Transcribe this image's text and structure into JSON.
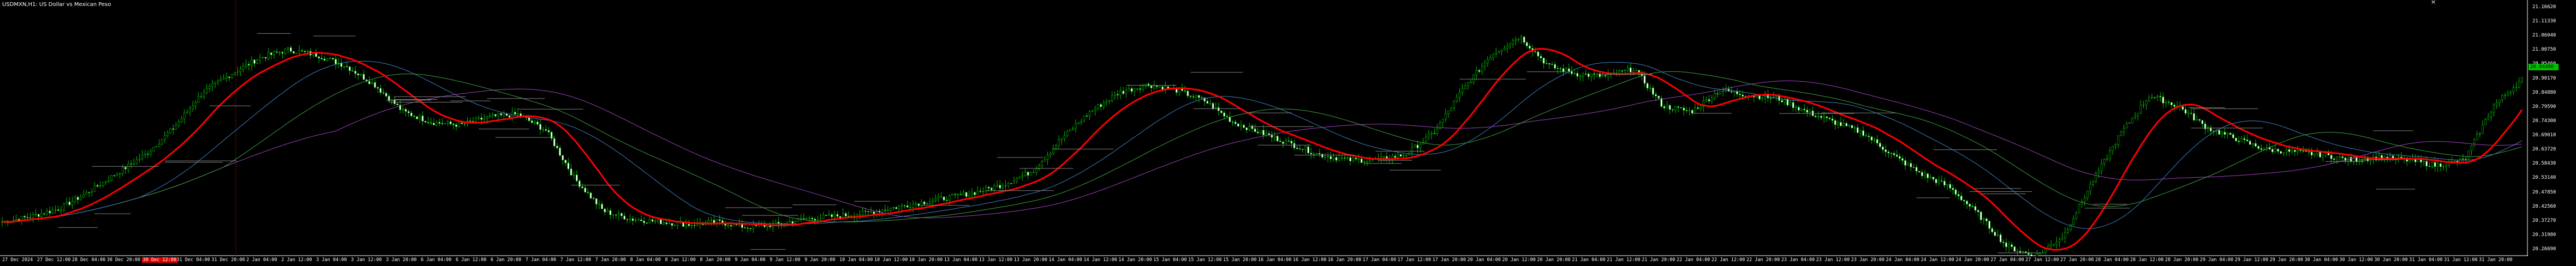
{
  "window": {
    "title": "USDMXN,H1:  US Dollar vs Mexican Peso",
    "close_glyph": "×"
  },
  "price_axis": {
    "labels": [
      "21.16620",
      "21.11330",
      "21.06040",
      "21.00750",
      "20.95460",
      "20.90170",
      "20.84880",
      "20.79590",
      "20.74300",
      "20.69010",
      "20.63720",
      "20.58430",
      "20.53140",
      "20.47850",
      "20.42560",
      "20.37270",
      "20.31980",
      "20.26690"
    ],
    "current_price": "20.94490",
    "ymin": 20.2669,
    "ymax": 21.1662
  },
  "time_axis": {
    "labels": [
      "27 Dec 2024",
      "27 Dec 12:00",
      "28 Dec 04:00",
      "30 Dec 20:00",
      "30 Dec 12:00",
      "31 Dec 04:00",
      "31 Dec 20:00",
      "2 Jan 04:00",
      "2 Jan 12:00",
      "3 Jan 04:00",
      "3 Jan 12:00",
      "3 Jan 20:00",
      "6 Jan 04:00",
      "6 Jan 12:00",
      "6 Jan 20:00",
      "7 Jan 04:00",
      "7 Jan 12:00",
      "7 Jan 20:00",
      "8 Jan 04:00",
      "8 Jan 12:00",
      "8 Jan 20:00",
      "9 Jan 04:00",
      "9 Jan 12:00",
      "9 Jan 20:00",
      "10 Jan 04:00",
      "10 Jan 12:00",
      "10 Jan 20:00",
      "13 Jan 04:00",
      "13 Jan 12:00",
      "13 Jan 20:00",
      "14 Jan 04:00",
      "14 Jan 12:00",
      "14 Jan 20:00",
      "15 Jan 04:00",
      "15 Jan 12:00",
      "15 Jan 20:00",
      "16 Jan 04:00",
      "16 Jan 12:00",
      "16 Jan 20:00",
      "17 Jan 04:00",
      "17 Jan 12:00",
      "17 Jan 20:00",
      "20 Jan 04:00",
      "20 Jan 12:00",
      "20 Jan 20:00",
      "21 Jan 04:00",
      "21 Jan 12:00",
      "21 Jan 20:00",
      "22 Jan 04:00",
      "22 Jan 12:00",
      "22 Jan 20:00",
      "23 Jan 04:00",
      "23 Jan 12:00",
      "23 Jan 20:00",
      "24 Jan 04:00",
      "24 Jan 12:00",
      "24 Jan 20:00",
      "27 Jan 04:00",
      "27 Jan 12:00",
      "27 Jan 20:00",
      "28 Jan 04:00",
      "28 Jan 12:00",
      "28 Jan 20:00",
      "29 Jan 04:00",
      "29 Jan 12:00",
      "29 Jan 20:00",
      "30 Jan 04:00",
      "30 Jan 12:00",
      "30 Jan 20:00",
      "31 Jan 04:00",
      "31 Jan 12:00",
      "31 Jan 20:00"
    ],
    "highlight": "30 Dec 12:00"
  },
  "colors": {
    "background": "#000000",
    "candle": "#00c000",
    "ma_fast": "#ff0000",
    "ma_blue": "#4080c0",
    "ma_green": "#40a040",
    "ma_purple": "#a040c0",
    "level_lines": "#808080",
    "cursor_line": "#e00000"
  },
  "chart_data": {
    "type": "candlestick",
    "symbol": "USDMXN",
    "timeframe": "H1",
    "close_path": [
      20.37,
      20.39,
      20.42,
      20.48,
      20.55,
      20.62,
      20.72,
      20.85,
      20.92,
      20.98,
      21.01,
      20.99,
      20.95,
      20.88,
      20.78,
      20.74,
      20.73,
      20.76,
      20.77,
      20.71,
      20.53,
      20.41,
      20.38,
      20.37,
      20.36,
      20.37,
      20.35,
      20.36,
      20.38,
      20.39,
      20.4,
      20.42,
      20.44,
      20.46,
      20.48,
      20.51,
      20.56,
      20.68,
      20.78,
      20.85,
      20.88,
      20.86,
      20.82,
      20.74,
      20.7,
      20.66,
      20.62,
      20.6,
      20.6,
      20.62,
      20.7,
      20.86,
      20.99,
      21.06,
      20.95,
      20.92,
      20.91,
      20.94,
      20.8,
      20.78,
      20.86,
      20.84,
      20.83,
      20.78,
      20.74,
      20.7,
      20.62,
      20.55,
      20.5,
      20.4,
      20.28,
      20.24,
      20.32,
      20.52,
      20.7,
      20.84,
      20.8,
      20.72,
      20.68,
      20.64,
      20.63,
      20.62,
      20.6,
      20.61,
      20.6,
      20.58,
      20.6,
      20.8,
      20.9
    ],
    "moving_averages": [
      "red",
      "blue",
      "green",
      "purple"
    ]
  }
}
